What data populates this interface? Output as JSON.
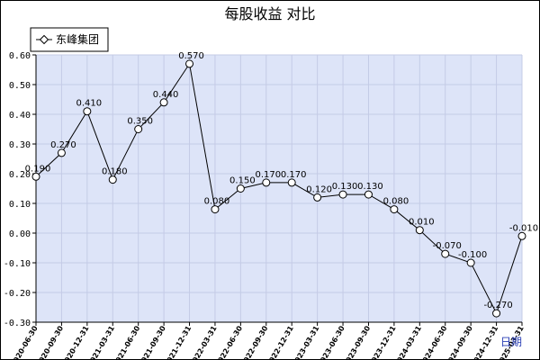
{
  "chart_data": {
    "type": "line",
    "title": "每股收益  对比",
    "legend": {
      "entries": [
        "东峰集团"
      ],
      "placement": "top-left"
    },
    "x_axis_label": "日期",
    "x": [
      "2020-06-30",
      "2020-09-30",
      "2020-12-31",
      "2021-03-31",
      "2021-06-30",
      "2021-09-30",
      "2021-12-31",
      "2022-03-31",
      "2022-06-30",
      "2022-09-30",
      "2022-12-31",
      "2023-03-31",
      "2023-06-30",
      "2023-09-30",
      "2023-12-31",
      "2024-03-31",
      "2024-06-30",
      "2024-09-30",
      "2024-12-31",
      "2025-03-31"
    ],
    "series": [
      {
        "name": "东峰集团",
        "values": [
          0.19,
          0.27,
          0.41,
          0.18,
          0.35,
          0.44,
          0.57,
          0.08,
          0.15,
          0.17,
          0.17,
          0.12,
          0.13,
          0.13,
          0.08,
          0.01,
          -0.07,
          -0.1,
          -0.27,
          -0.01
        ],
        "labels": [
          "0.190",
          "0.270",
          "0.410",
          "0.180",
          "0.350",
          "0.440",
          "0.570",
          "0.080",
          "0.150",
          "0.170",
          "0.170",
          "0.120",
          "0.130",
          "0.130",
          "0.080",
          "0.010",
          "-0.070",
          "-0.100",
          "-0.270",
          "-0.010"
        ]
      }
    ],
    "y_ticks": [
      "0.60",
      "0.50",
      "0.40",
      "0.30",
      "0.20",
      "0.10",
      "0.00",
      "-0.10",
      "-0.20",
      "-0.30"
    ],
    "ylim": [
      -0.3,
      0.6
    ],
    "grid": true,
    "colors": {
      "plot_bg": "#dde4f8",
      "grid": "#c4cbe6",
      "line": "#000000",
      "marker_fill": "#ffffff"
    }
  }
}
